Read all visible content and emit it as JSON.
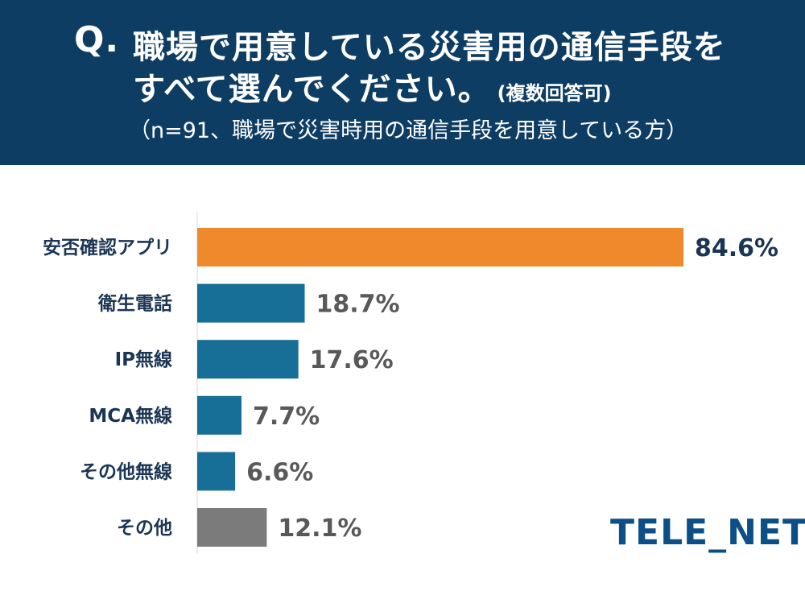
{
  "header": {
    "q_mark": "Q.",
    "line1": "職場で用意している災害用の通信手段を",
    "line2": "すべて選んでください。",
    "line2_suffix": "(複数回答可)",
    "note": "（n=91、職場で災害時用の通信手段を用意している方）"
  },
  "chart_data": {
    "type": "bar",
    "orientation": "horizontal",
    "title": "職場で用意している災害用の通信手段をすべて選んでください。(複数回答可)",
    "categories": [
      "安否確認アプリ",
      "衛生電話",
      "IP無線",
      "MCA無線",
      "その他無線",
      "その他"
    ],
    "values": [
      84.6,
      18.7,
      17.6,
      7.7,
      6.6,
      12.1
    ],
    "value_labels": [
      "84.6%",
      "18.7%",
      "17.6%",
      "7.7%",
      "6.6%",
      "12.1%"
    ],
    "bar_colors": [
      "#ee8a2b",
      "#176e96",
      "#176e96",
      "#176e96",
      "#176e96",
      "#7b7b7b"
    ],
    "label_colors": [
      "#1b3553",
      "#595959",
      "#595959",
      "#595959",
      "#595959",
      "#595959"
    ],
    "xlim": [
      0,
      100
    ],
    "xlabel": "",
    "ylabel": "",
    "grid": false
  },
  "logo": {
    "text": "TELE_NET"
  },
  "colors": {
    "header_bg": "#0e3d63",
    "category_text": "#1b3553"
  }
}
